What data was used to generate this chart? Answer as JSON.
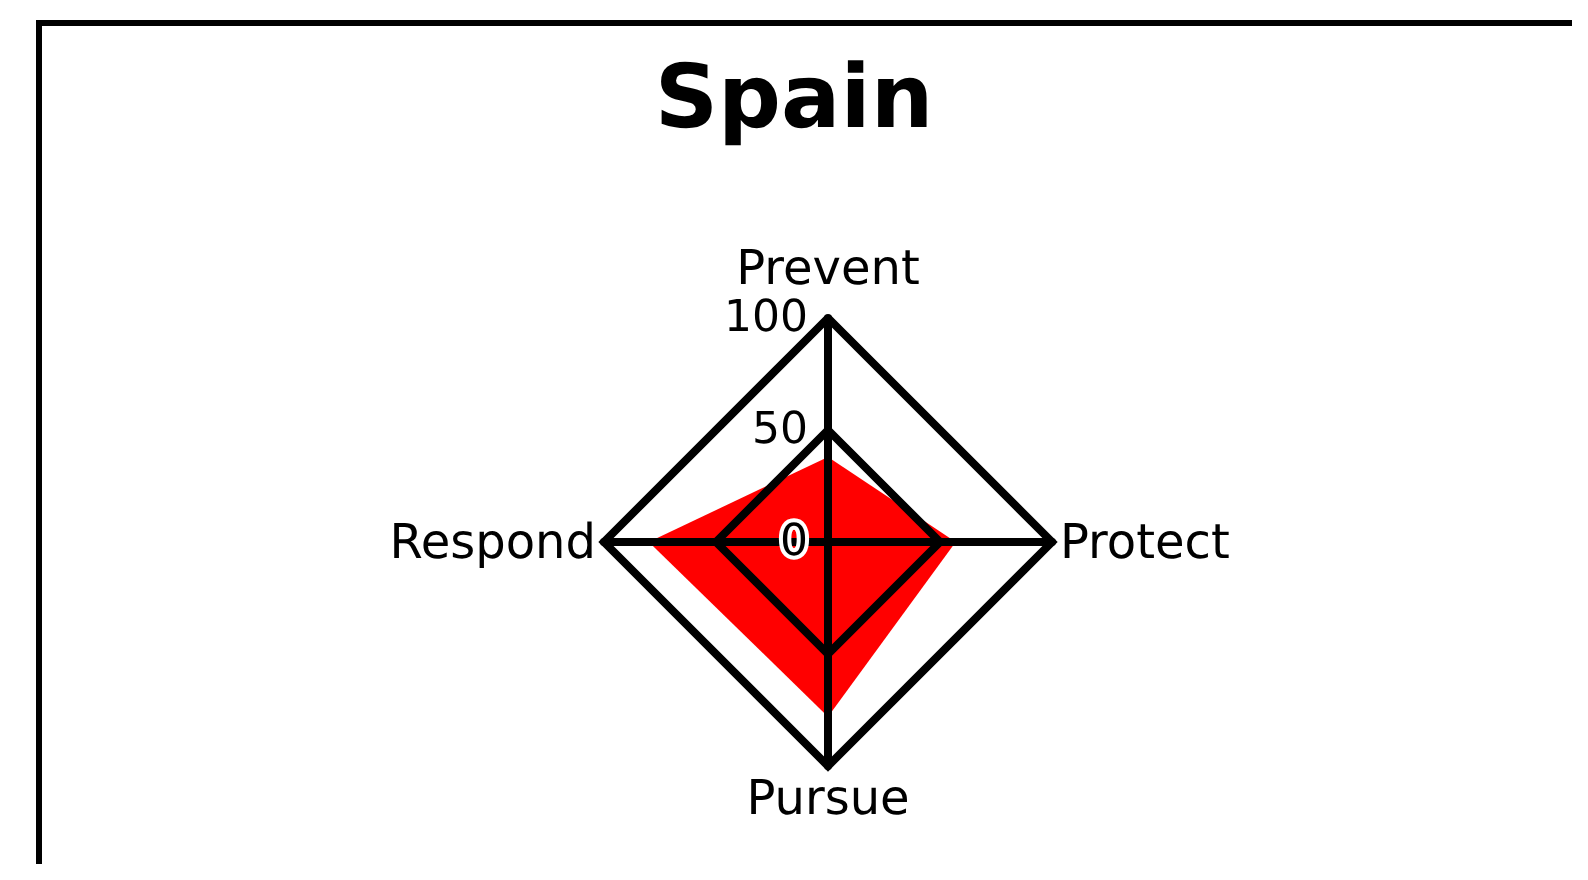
{
  "chart_data": {
    "type": "radar",
    "title": "Spain",
    "categories": [
      "Prevent",
      "Protect",
      "Pursue",
      "Respond"
    ],
    "series": [
      {
        "color": "#ff0000",
        "values": [
          38,
          57,
          78,
          80
        ]
      }
    ],
    "ylim": [
      0,
      100
    ],
    "yticks": [
      0,
      50,
      100
    ]
  }
}
